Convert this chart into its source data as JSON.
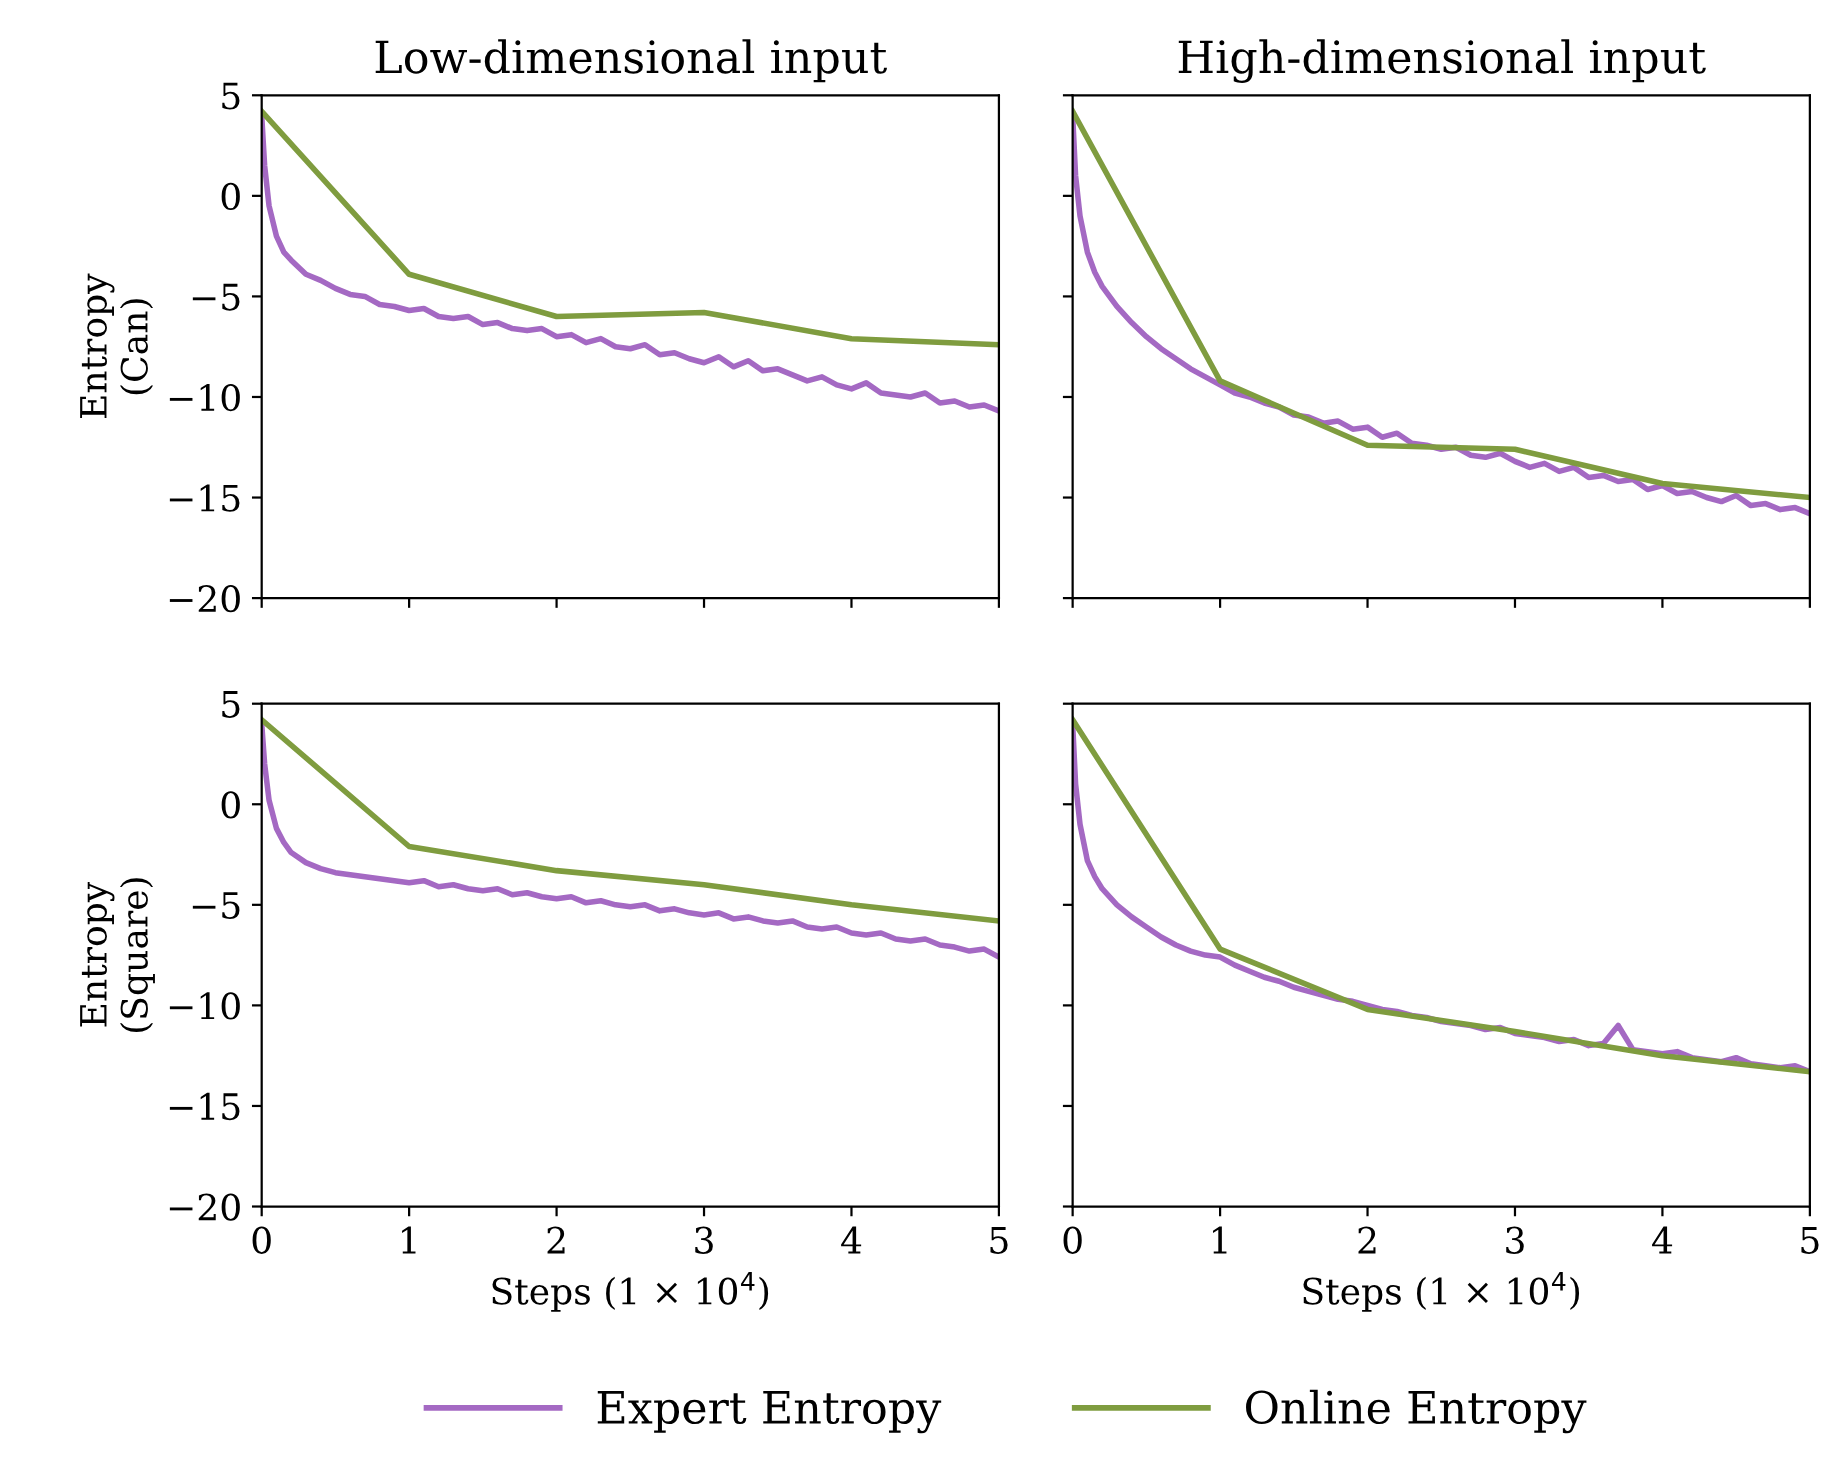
{
  "chart_data": [
    {
      "type": "line",
      "title": "Low-dimensional input",
      "ylabel": "Entropy\n(Can)",
      "xlim": [
        0,
        5
      ],
      "xticks": [
        0,
        1,
        2,
        3,
        4,
        5
      ],
      "ylim": [
        -20,
        5
      ],
      "yticks": [
        -20,
        -15,
        -10,
        -5,
        0,
        5
      ],
      "tick_labels": "y",
      "series": [
        {
          "color": "#a469c3",
          "x": [
            0,
            0.02,
            0.05,
            0.1,
            0.15,
            0.2,
            0.3,
            0.4,
            0.5,
            0.6,
            0.7,
            0.8,
            0.9,
            1.0,
            1.1,
            1.2,
            1.3,
            1.4,
            1.5,
            1.6,
            1.7,
            1.8,
            1.9,
            2.0,
            2.1,
            2.2,
            2.3,
            2.4,
            2.5,
            2.6,
            2.7,
            2.8,
            2.9,
            3.0,
            3.1,
            3.2,
            3.3,
            3.4,
            3.5,
            3.6,
            3.7,
            3.8,
            3.9,
            4.0,
            4.1,
            4.2,
            4.3,
            4.4,
            4.5,
            4.6,
            4.7,
            4.8,
            4.9,
            5.0
          ],
          "values": [
            4,
            1.5,
            -0.5,
            -2,
            -2.8,
            -3.2,
            -3.9,
            -4.2,
            -4.6,
            -4.9,
            -5.0,
            -5.4,
            -5.5,
            -5.7,
            -5.6,
            -6.0,
            -6.1,
            -6.0,
            -6.4,
            -6.3,
            -6.6,
            -6.7,
            -6.6,
            -7.0,
            -6.9,
            -7.3,
            -7.1,
            -7.5,
            -7.6,
            -7.4,
            -7.9,
            -7.8,
            -8.1,
            -8.3,
            -8.0,
            -8.5,
            -8.2,
            -8.7,
            -8.6,
            -8.9,
            -9.2,
            -9.0,
            -9.4,
            -9.6,
            -9.3,
            -9.8,
            -9.9,
            -10.0,
            -9.8,
            -10.3,
            -10.2,
            -10.5,
            -10.4,
            -10.7
          ]
        },
        {
          "color": "#7f9c3f",
          "x": [
            0,
            1,
            2,
            3,
            4,
            5
          ],
          "values": [
            4.2,
            -3.9,
            -6,
            -5.8,
            -7.1,
            -7.4
          ]
        }
      ]
    },
    {
      "type": "line",
      "title": "High-dimensional input",
      "xlim": [
        0,
        5
      ],
      "xticks": [
        0,
        1,
        2,
        3,
        4,
        5
      ],
      "ylim": [
        -20,
        5
      ],
      "yticks": [
        -20,
        -15,
        -10,
        -5,
        0,
        5
      ],
      "tick_labels": false,
      "series": [
        {
          "color": "#a469c3",
          "x": [
            0,
            0.02,
            0.05,
            0.1,
            0.15,
            0.2,
            0.3,
            0.4,
            0.5,
            0.6,
            0.7,
            0.8,
            0.9,
            1.0,
            1.1,
            1.2,
            1.3,
            1.4,
            1.5,
            1.6,
            1.7,
            1.8,
            1.9,
            2.0,
            2.1,
            2.2,
            2.3,
            2.4,
            2.5,
            2.6,
            2.7,
            2.8,
            2.9,
            3.0,
            3.1,
            3.2,
            3.3,
            3.4,
            3.5,
            3.6,
            3.7,
            3.8,
            3.9,
            4.0,
            4.1,
            4.2,
            4.3,
            4.4,
            4.5,
            4.6,
            4.7,
            4.8,
            4.9,
            5.0
          ],
          "values": [
            4,
            1,
            -1,
            -2.8,
            -3.8,
            -4.5,
            -5.5,
            -6.3,
            -7.0,
            -7.6,
            -8.1,
            -8.6,
            -9.0,
            -9.4,
            -9.8,
            -10.0,
            -10.3,
            -10.5,
            -10.9,
            -11.0,
            -11.3,
            -11.2,
            -11.6,
            -11.5,
            -12.0,
            -11.8,
            -12.3,
            -12.4,
            -12.6,
            -12.5,
            -12.9,
            -13.0,
            -12.8,
            -13.2,
            -13.5,
            -13.3,
            -13.7,
            -13.5,
            -14.0,
            -13.9,
            -14.2,
            -14.1,
            -14.6,
            -14.4,
            -14.8,
            -14.7,
            -15.0,
            -15.2,
            -14.9,
            -15.4,
            -15.3,
            -15.6,
            -15.5,
            -15.8
          ]
        },
        {
          "color": "#7f9c3f",
          "x": [
            0,
            1,
            2,
            3,
            4,
            5
          ],
          "values": [
            4.2,
            -9.2,
            -12.4,
            -12.6,
            -14.3,
            -15
          ]
        }
      ]
    },
    {
      "type": "line",
      "ylabel": "Entropy\n(Square)",
      "xlabel": "Steps (1 × 10$^{4}$)",
      "xlim": [
        0,
        5
      ],
      "xticks": [
        0,
        1,
        2,
        3,
        4,
        5
      ],
      "ylim": [
        -20,
        5
      ],
      "yticks": [
        -20,
        -15,
        -10,
        -5,
        0,
        5
      ],
      "series": [
        {
          "color": "#a469c3",
          "x": [
            0,
            0.02,
            0.05,
            0.1,
            0.15,
            0.2,
            0.3,
            0.4,
            0.5,
            0.6,
            0.7,
            0.8,
            0.9,
            1.0,
            1.1,
            1.2,
            1.3,
            1.4,
            1.5,
            1.6,
            1.7,
            1.8,
            1.9,
            2.0,
            2.1,
            2.2,
            2.3,
            2.4,
            2.5,
            2.6,
            2.7,
            2.8,
            2.9,
            3.0,
            3.1,
            3.2,
            3.3,
            3.4,
            3.5,
            3.6,
            3.7,
            3.8,
            3.9,
            4.0,
            4.1,
            4.2,
            4.3,
            4.4,
            4.5,
            4.6,
            4.7,
            4.8,
            4.9,
            5.0
          ],
          "values": [
            4,
            2,
            0.2,
            -1.2,
            -1.9,
            -2.4,
            -2.9,
            -3.2,
            -3.4,
            -3.5,
            -3.6,
            -3.7,
            -3.8,
            -3.9,
            -3.8,
            -4.1,
            -4.0,
            -4.2,
            -4.3,
            -4.2,
            -4.5,
            -4.4,
            -4.6,
            -4.7,
            -4.6,
            -4.9,
            -4.8,
            -5.0,
            -5.1,
            -5.0,
            -5.3,
            -5.2,
            -5.4,
            -5.5,
            -5.4,
            -5.7,
            -5.6,
            -5.8,
            -5.9,
            -5.8,
            -6.1,
            -6.2,
            -6.1,
            -6.4,
            -6.5,
            -6.4,
            -6.7,
            -6.8,
            -6.7,
            -7.0,
            -7.1,
            -7.3,
            -7.2,
            -7.6
          ]
        },
        {
          "color": "#7f9c3f",
          "x": [
            0,
            1,
            2,
            3,
            4,
            5
          ],
          "values": [
            4.2,
            -2.1,
            -3.3,
            -4,
            -5,
            -5.8
          ]
        }
      ]
    },
    {
      "type": "line",
      "xlabel": "Steps (1 × 10$^{4}$)",
      "xlim": [
        0,
        5
      ],
      "xticks": [
        0,
        1,
        2,
        3,
        4,
        5
      ],
      "ylim": [
        -20,
        5
      ],
      "yticks": [
        -20,
        -15,
        -10,
        -5,
        0,
        5
      ],
      "tick_labels": "x",
      "legend": "bottom",
      "series": [
        {
          "name": "Expert Entropy",
          "color": "#a469c3",
          "x": [
            0,
            0.02,
            0.05,
            0.1,
            0.15,
            0.2,
            0.3,
            0.4,
            0.5,
            0.6,
            0.7,
            0.8,
            0.9,
            1.0,
            1.1,
            1.2,
            1.3,
            1.4,
            1.5,
            1.6,
            1.7,
            1.8,
            1.9,
            2.0,
            2.1,
            2.2,
            2.3,
            2.4,
            2.5,
            2.6,
            2.7,
            2.8,
            2.9,
            3.0,
            3.1,
            3.2,
            3.3,
            3.4,
            3.5,
            3.6,
            3.7,
            3.8,
            3.9,
            4.0,
            4.1,
            4.2,
            4.3,
            4.4,
            4.5,
            4.6,
            4.7,
            4.8,
            4.9,
            5.0
          ],
          "values": [
            4,
            1,
            -1,
            -2.8,
            -3.6,
            -4.2,
            -5.0,
            -5.6,
            -6.1,
            -6.6,
            -7.0,
            -7.3,
            -7.5,
            -7.6,
            -8.0,
            -8.3,
            -8.6,
            -8.8,
            -9.1,
            -9.3,
            -9.5,
            -9.7,
            -9.8,
            -10.0,
            -10.2,
            -10.3,
            -10.5,
            -10.6,
            -10.8,
            -10.9,
            -11.0,
            -11.2,
            -11.1,
            -11.4,
            -11.5,
            -11.6,
            -11.8,
            -11.7,
            -12.0,
            -11.9,
            -11.0,
            -12.2,
            -12.3,
            -12.4,
            -12.3,
            -12.6,
            -12.7,
            -12.8,
            -12.6,
            -12.9,
            -13.0,
            -13.1,
            -13.0,
            -13.3
          ]
        },
        {
          "name": "Online Entropy",
          "color": "#7f9c3f",
          "x": [
            0,
            1,
            2,
            3,
            4,
            5
          ],
          "values": [
            4.2,
            -7.2,
            -10.2,
            -11.3,
            -12.5,
            -13.3
          ]
        }
      ]
    }
  ]
}
